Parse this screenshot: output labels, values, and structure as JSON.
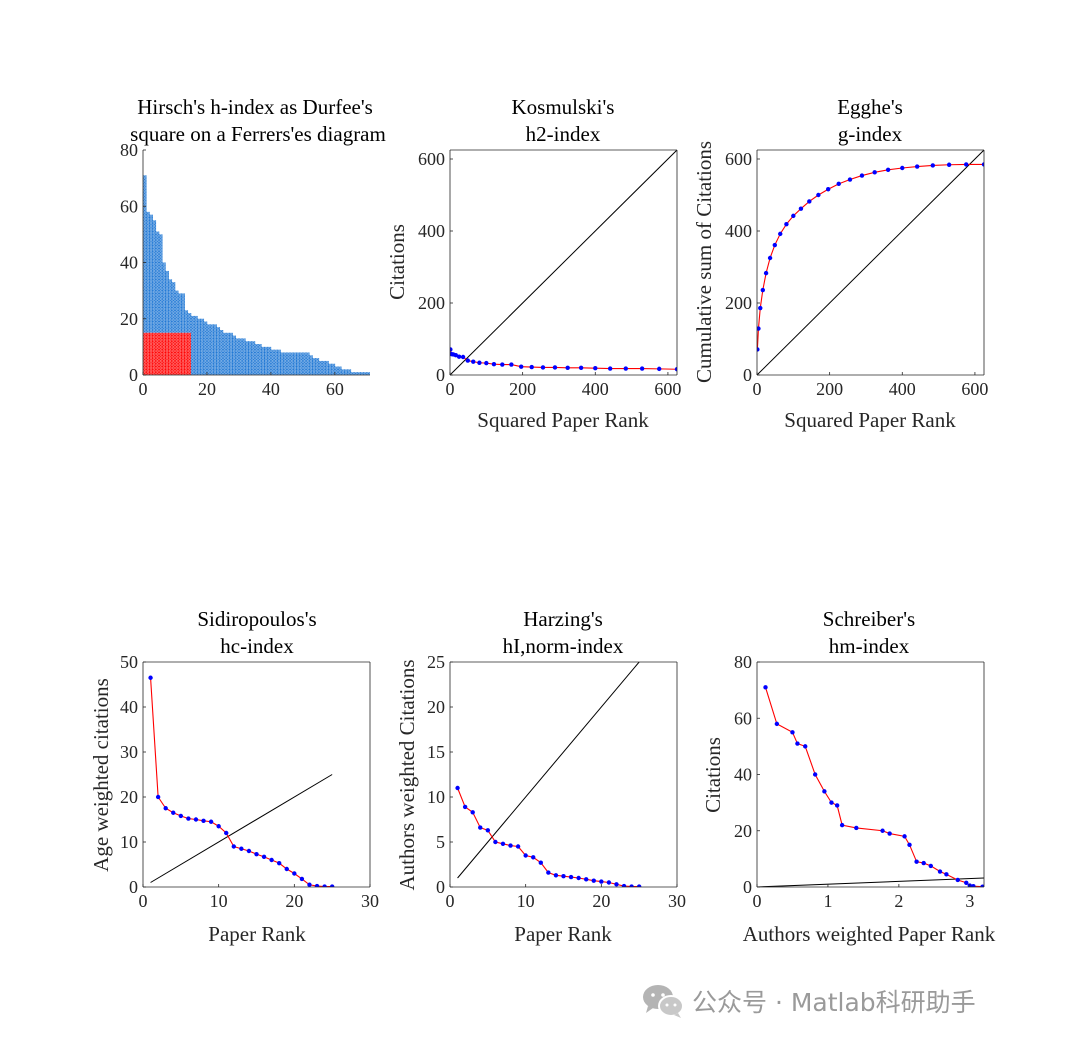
{
  "chart_data": [
    {
      "id": "hindex",
      "type": "heatmap",
      "title": [
        "Hirsch's h-index as Durfee's",
        "square on a Ferrers'es diagram"
      ],
      "xlabel": "",
      "ylabel": "",
      "xlim": [
        0,
        71
      ],
      "ylim": [
        0,
        80
      ],
      "xticks": [
        0,
        20,
        40,
        60
      ],
      "yticks": [
        0,
        20,
        40,
        60,
        80
      ],
      "h_index": 15,
      "citations": [
        71,
        58,
        57,
        55,
        51,
        50,
        40,
        37,
        34,
        33,
        30,
        29,
        29,
        23,
        22,
        21,
        21,
        20,
        20,
        19,
        18,
        18,
        18,
        17,
        16,
        15,
        15,
        15,
        14,
        13,
        13,
        13,
        12,
        12,
        12,
        11,
        11,
        10,
        10,
        10,
        9,
        9,
        9,
        8,
        8,
        8,
        8,
        8,
        8,
        8,
        8,
        8,
        7,
        6,
        6,
        5,
        5,
        5,
        4,
        4,
        3,
        3,
        2,
        2,
        2,
        1,
        1,
        1,
        1,
        1,
        1
      ],
      "dot_color": "#1f77d4",
      "square_color": "#ff0000"
    },
    {
      "id": "h2",
      "type": "line",
      "title": [
        "Kosmulski's",
        "h2-index"
      ],
      "xlabel": "Squared Paper Rank",
      "ylabel": "Citations",
      "xlim": [
        0,
        625
      ],
      "ylim": [
        0,
        625
      ],
      "xticks": [
        0,
        200,
        400,
        600
      ],
      "yticks": [
        0,
        200,
        400,
        600
      ],
      "series": [
        {
          "x": [
            1,
            4,
            9,
            16,
            25,
            36,
            49,
            64,
            81,
            100,
            121,
            144,
            169,
            196,
            225,
            256,
            289,
            324,
            361,
            400,
            441,
            484,
            529,
            576,
            625
          ],
          "y": [
            71,
            58,
            57,
            55,
            51,
            50,
            40,
            37,
            34,
            33,
            30,
            29,
            29,
            23,
            22,
            21,
            21,
            20,
            20,
            19,
            18,
            18,
            18,
            17,
            16
          ],
          "line_color": "#ff0000",
          "marker_color": "#0000ff"
        }
      ],
      "diagonal": [
        [
          0,
          0
        ],
        [
          625,
          625
        ]
      ]
    },
    {
      "id": "g",
      "type": "line",
      "title": [
        "Egghe's",
        "g-index"
      ],
      "xlabel": "Squared Paper Rank",
      "ylabel": "Cumulative sum of Citations",
      "xlim": [
        0,
        625
      ],
      "ylim": [
        0,
        625
      ],
      "xticks": [
        0,
        200,
        400,
        600
      ],
      "yticks": [
        0,
        200,
        400,
        600
      ],
      "series": [
        {
          "x": [
            1,
            4,
            9,
            16,
            25,
            36,
            49,
            64,
            81,
            100,
            121,
            144,
            169,
            196,
            225,
            256,
            289,
            324,
            361,
            400,
            441,
            484,
            529,
            576,
            625
          ],
          "y": [
            71,
            129,
            186,
            236,
            283,
            325,
            361,
            392,
            419,
            442,
            462,
            482,
            500,
            516,
            531,
            543,
            554,
            563,
            570,
            575,
            579,
            582,
            584,
            585,
            585
          ],
          "line_color": "#ff0000",
          "marker_color": "#0000ff"
        }
      ],
      "diagonal": [
        [
          0,
          0
        ],
        [
          625,
          625
        ]
      ]
    },
    {
      "id": "hc",
      "type": "line",
      "title": [
        "Sidiropoulos's",
        "hc-index"
      ],
      "xlabel": "Paper Rank",
      "ylabel": "Age weighted citations",
      "xlim": [
        0,
        30
      ],
      "ylim": [
        0,
        50
      ],
      "xticks": [
        0,
        10,
        20,
        30
      ],
      "yticks": [
        0,
        10,
        20,
        30,
        40,
        50
      ],
      "series": [
        {
          "x": [
            1,
            2,
            3,
            4,
            5,
            6,
            7,
            8,
            9,
            10,
            11,
            12,
            13,
            14,
            15,
            16,
            17,
            18,
            19,
            20,
            21,
            22,
            23,
            24,
            25
          ],
          "y": [
            46.5,
            20,
            17.5,
            16.5,
            15.8,
            15.2,
            15,
            14.7,
            14.5,
            13.5,
            12,
            9,
            8.5,
            8,
            7.3,
            6.7,
            6,
            5.3,
            4,
            3,
            1.8,
            0.5,
            0.2,
            0.1,
            0.1
          ],
          "line_color": "#ff0000",
          "marker_color": "#0000ff"
        }
      ],
      "diagonal": [
        [
          1,
          1
        ],
        [
          25,
          25
        ]
      ]
    },
    {
      "id": "hinorm",
      "type": "line",
      "title": [
        "Harzing's",
        "hI,norm-index"
      ],
      "xlabel": "Paper Rank",
      "ylabel": "Authors weighted Citations",
      "xlim": [
        0,
        30
      ],
      "ylim": [
        0,
        25
      ],
      "xticks": [
        0,
        10,
        20,
        30
      ],
      "yticks": [
        0,
        5,
        10,
        15,
        20,
        25
      ],
      "series": [
        {
          "x": [
            1,
            2,
            3,
            4,
            5,
            6,
            7,
            8,
            9,
            10,
            11,
            12,
            13,
            14,
            15,
            16,
            17,
            18,
            19,
            20,
            21,
            22,
            23,
            24,
            25
          ],
          "y": [
            11,
            8.9,
            8.3,
            6.6,
            6.3,
            5,
            4.8,
            4.6,
            4.5,
            3.5,
            3.3,
            2.7,
            1.6,
            1.3,
            1.2,
            1.1,
            1.0,
            0.85,
            0.7,
            0.6,
            0.5,
            0.3,
            0.1,
            0.05,
            0.05
          ],
          "line_color": "#ff0000",
          "marker_color": "#0000ff"
        }
      ],
      "diagonal": [
        [
          1,
          1
        ],
        [
          30,
          30
        ]
      ]
    },
    {
      "id": "hm",
      "type": "line",
      "title": [
        "Schreiber's",
        "hm-index"
      ],
      "xlabel": "Authors weighted Paper Rank",
      "ylabel": "Citations",
      "xlim": [
        0,
        3.2
      ],
      "ylim": [
        0,
        80
      ],
      "xticks": [
        0,
        1,
        2,
        3
      ],
      "yticks": [
        0,
        20,
        40,
        60,
        80
      ],
      "series": [
        {
          "x": [
            0.12,
            0.28,
            0.5,
            0.57,
            0.68,
            0.82,
            0.95,
            1.05,
            1.13,
            1.2,
            1.4,
            1.77,
            1.87,
            2.08,
            2.15,
            2.25,
            2.35,
            2.45,
            2.58,
            2.67,
            2.83,
            2.95,
            3.0,
            3.05,
            3.18
          ],
          "y": [
            71,
            58,
            55,
            51,
            50,
            40,
            34,
            30,
            29,
            22,
            21,
            20,
            19,
            18,
            15,
            9,
            8.5,
            7.5,
            5.5,
            4.5,
            2.5,
            1.5,
            0.5,
            0.3,
            0.1
          ],
          "line_color": "#ff0000",
          "marker_color": "#0000ff"
        }
      ],
      "diagonal": [
        [
          0,
          0
        ],
        [
          3.2,
          3.2
        ]
      ]
    }
  ],
  "watermark": {
    "text": "公众号 · Matlab科研助手",
    "icon": "wechat-icon"
  }
}
